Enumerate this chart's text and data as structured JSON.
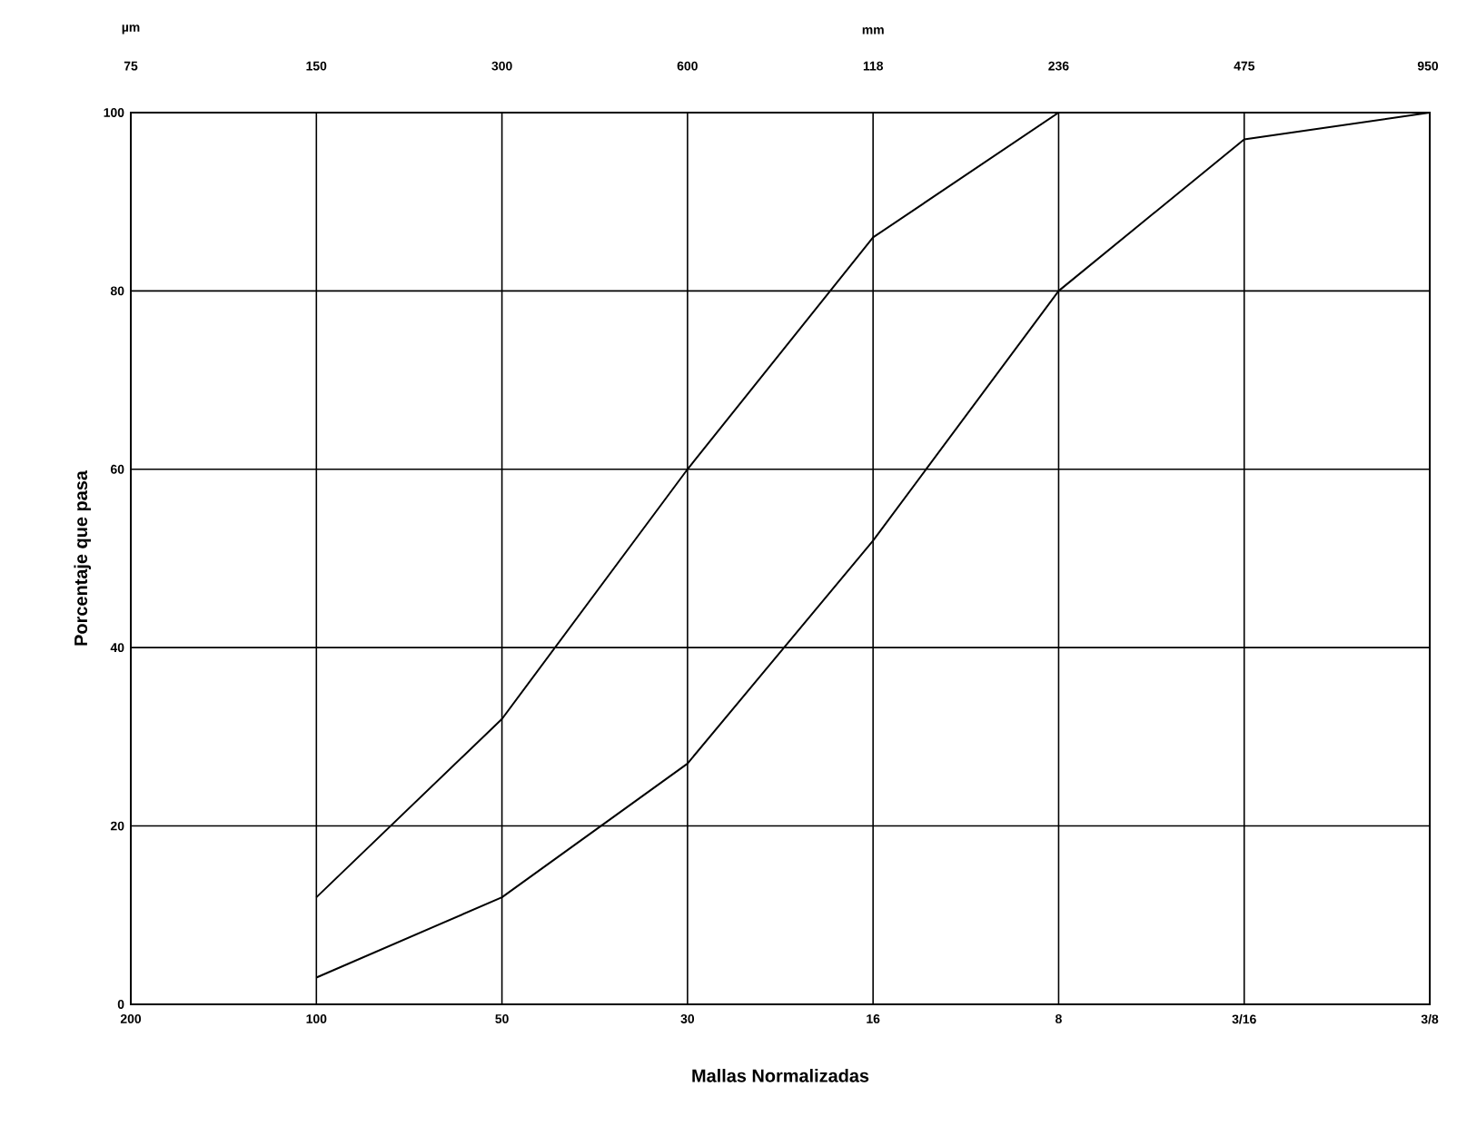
{
  "chart_data": {
    "type": "line",
    "xlabel": "Mallas Normalizadas",
    "ylabel": "Porcentaje que pasa",
    "categories": [
      "200",
      "100",
      "50",
      "30",
      "16",
      "8",
      "3/16",
      "3/8"
    ],
    "series": [
      {
        "color": "#000000",
        "values": [
          null,
          12,
          32,
          60,
          86,
          100,
          null,
          null
        ]
      },
      {
        "color": "#000000",
        "values": [
          null,
          3,
          12,
          27,
          52,
          80,
          97,
          100
        ]
      }
    ],
    "ylim": [
      0,
      100
    ],
    "yticks": [
      0,
      20,
      40,
      60,
      80,
      100
    ],
    "annotations": [
      "µm",
      "mm",
      "75",
      "150",
      "300",
      "600",
      "118",
      "236",
      "475",
      "950"
    ],
    "grid": true,
    "marker": "none",
    "line_style": "solid"
  }
}
